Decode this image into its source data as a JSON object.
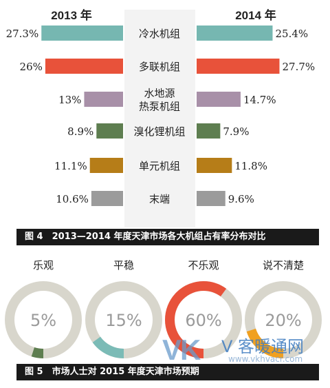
{
  "chart_data": [
    {
      "type": "bar",
      "title": "",
      "categories": [
        "冷水机组",
        "多联机组",
        "水地源\n热泵机组",
        "溴化锂机组",
        "单元机组",
        "末端"
      ],
      "series": [
        {
          "name": "2013 年",
          "values": [
            27.3,
            26,
            13,
            8.9,
            11.1,
            10.6
          ],
          "labels": [
            "27.3%",
            "26%",
            "13%",
            "8.9%",
            "11.1%",
            "10.6%"
          ]
        },
        {
          "name": "2014 年",
          "values": [
            25.4,
            27.7,
            14.7,
            7.9,
            11.8,
            9.6
          ],
          "labels": [
            "25.4%",
            "27.7%",
            "14.7%",
            "7.9%",
            "11.8%",
            "9.6%"
          ]
        }
      ],
      "colors": [
        "#76b7b1",
        "#e8523a",
        "#a890a8",
        "#5e7e50",
        "#b67d18",
        "#9b9b9b"
      ],
      "caption": "图 4　2013—2014 年度天津市场各大机组占有率分布对比"
    },
    {
      "type": "pie",
      "categories": [
        "乐观",
        "平稳",
        "不乐观",
        "说不清楚"
      ],
      "values": [
        5,
        15,
        60,
        20
      ],
      "labels": [
        "5%",
        "15%",
        "60%",
        "20%"
      ],
      "colors": [
        "#5e7e50",
        "#7bbbb6",
        "#e8523a",
        "#f0a020"
      ],
      "track_color": "#d8d6cc",
      "caption": "图 5　市场人士对 2015 年度天津市场预期"
    }
  ],
  "watermark": {
    "logo": "VK",
    "name": "V 客暖通网",
    "url": "www.vkhvacr.com"
  }
}
